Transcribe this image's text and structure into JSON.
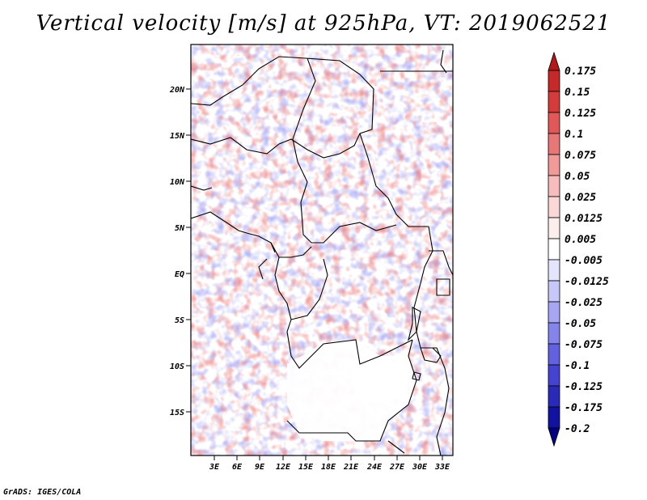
{
  "title": "Vertical velocity [m/s] at 925hPa, VT: 2019062521",
  "footer": "GrADS: IGES/COLA",
  "map": {
    "lat_labels": [
      "20N",
      "15N",
      "10N",
      "5N",
      "EQ",
      "5S",
      "10S",
      "15S"
    ],
    "lon_labels": [
      "3E",
      "6E",
      "9E",
      "12E",
      "15E",
      "18E",
      "21E",
      "24E",
      "27E",
      "30E",
      "33E"
    ]
  },
  "colorbar": {
    "levels": [
      "0.175",
      "0.15",
      "0.125",
      "0.1",
      "0.075",
      "0.05",
      "0.025",
      "0.0125",
      "0.005",
      "-0.005",
      "-0.0125",
      "-0.025",
      "-0.05",
      "-0.075",
      "-0.1",
      "-0.125",
      "-0.175",
      "-0.2"
    ],
    "colors": [
      "#b01a1a",
      "#c42a2a",
      "#d43c3c",
      "#e05858",
      "#e87878",
      "#f09a9a",
      "#f7bcbc",
      "#fbd8d8",
      "#fdeeee",
      "#ffffff",
      "#e4e4fc",
      "#c8c8f8",
      "#a6a6f2",
      "#8484ea",
      "#6262e0",
      "#4444d0",
      "#2a2ab8",
      "#1212a0",
      "#000080"
    ]
  }
}
